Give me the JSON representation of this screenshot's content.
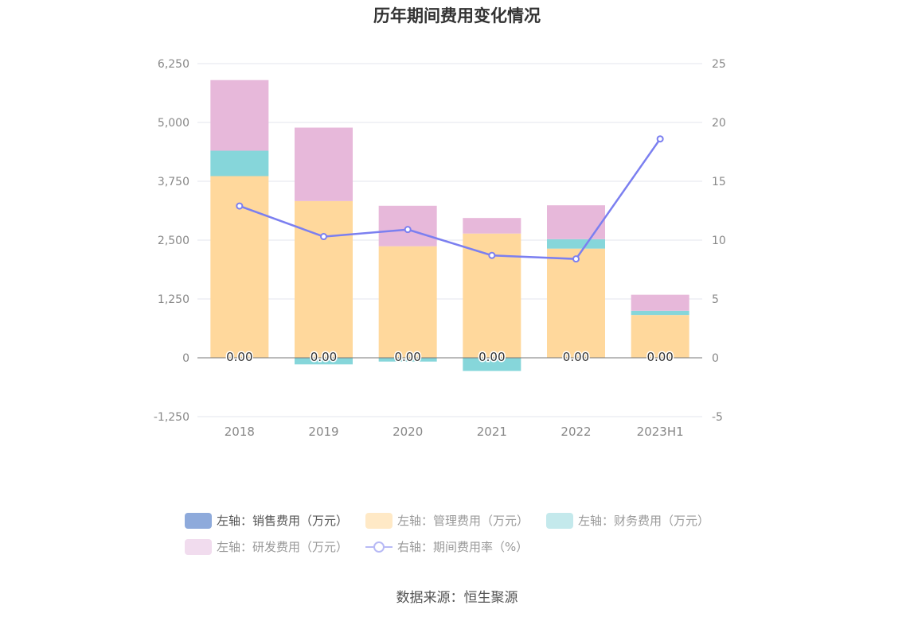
{
  "chart_data": {
    "type": "bar",
    "title": "历年期间费用变化情况",
    "categories": [
      "2018",
      "2019",
      "2020",
      "2021",
      "2022",
      "2023H1"
    ],
    "left_axis": {
      "ylim": [
        -1250,
        6250
      ],
      "ticks": [
        "6,250",
        "5,000",
        "3,750",
        "2,500",
        "1,250",
        "0",
        "-1,250"
      ],
      "tick_values": [
        6250,
        5000,
        3750,
        2500,
        1250,
        0,
        -1250
      ]
    },
    "right_axis": {
      "ylim": [
        -5,
        25
      ],
      "ticks": [
        "25",
        "20",
        "15",
        "10",
        "5",
        "0",
        "-5"
      ],
      "tick_values": [
        25,
        20,
        15,
        10,
        5,
        0,
        -5
      ]
    },
    "series": [
      {
        "name": "左轴：销售费用（万元）",
        "axis": "left",
        "type": "bar",
        "color": "#8eaadb",
        "values": [
          0,
          0,
          0,
          0,
          0,
          0
        ],
        "labels": [
          "0.00",
          "0.00",
          "0.00",
          "0.00",
          "0.00",
          "0.00"
        ]
      },
      {
        "name": "左轴：管理费用（万元）",
        "axis": "left",
        "type": "bar",
        "color": "#ffd89c",
        "values": [
          3860,
          3330,
          2370,
          2640,
          2320,
          910
        ]
      },
      {
        "name": "左轴：财务费用（万元）",
        "axis": "left",
        "type": "bar",
        "color": "#86d6da",
        "values": [
          540,
          -140,
          -80,
          -280,
          200,
          90
        ]
      },
      {
        "name": "左轴：研发费用（万元）",
        "axis": "left",
        "type": "bar",
        "color": "#e7b8da",
        "values": [
          1500,
          1560,
          860,
          330,
          720,
          340
        ]
      },
      {
        "name": "右轴：期间费用率（%）",
        "axis": "right",
        "type": "line",
        "color": "#7b7ff0",
        "values": [
          12.9,
          10.3,
          10.9,
          8.7,
          8.4,
          18.6
        ]
      }
    ],
    "legend_position": "bottom",
    "grid": true
  },
  "legend": {
    "row1": [
      "左轴：销售费用（万元）",
      "左轴：管理费用（万元）",
      "左轴：财务费用（万元）"
    ],
    "row2": [
      "左轴：研发费用（万元）",
      "右轴：期间费用率（%）"
    ],
    "swatch_colors": [
      "#8eaadb",
      "#ffe9c6",
      "#c4e9ec",
      "#f1dcee",
      "#b8baf5"
    ]
  },
  "source": "数据来源：恒生聚源"
}
